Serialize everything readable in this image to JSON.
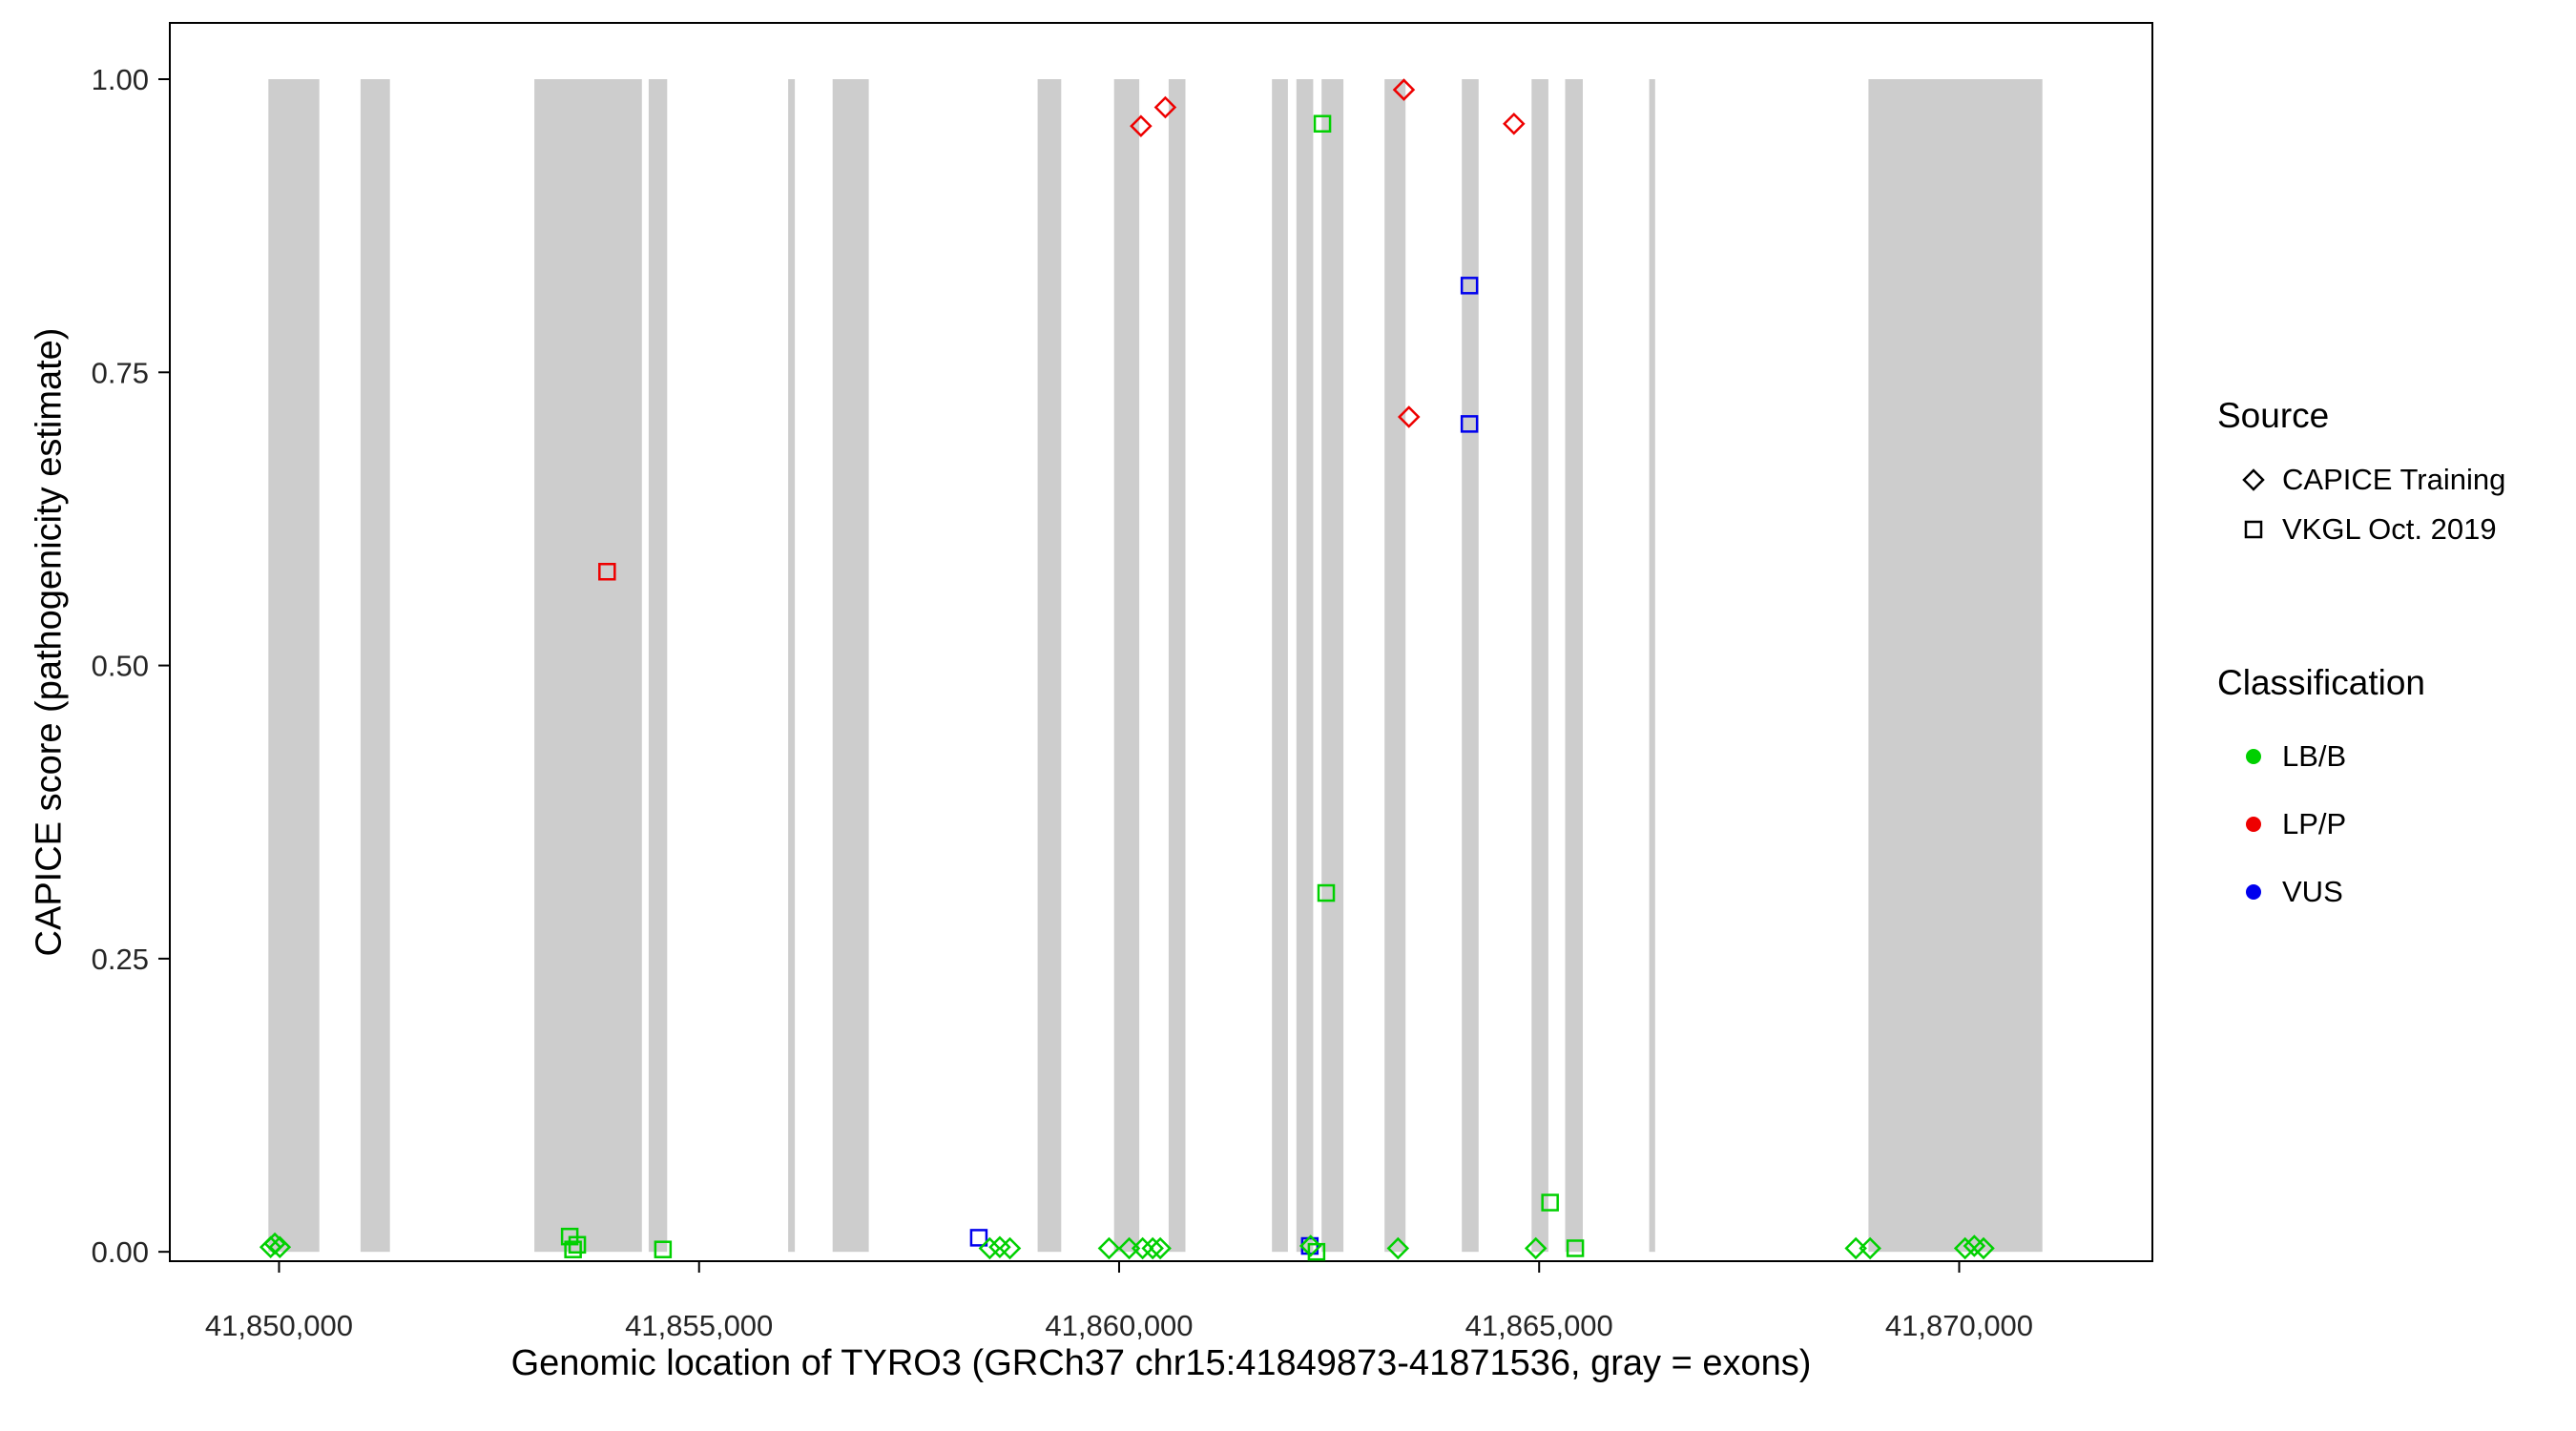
{
  "figure": {
    "background": "#FFFFFF"
  },
  "chart_data": {
    "type": "scatter",
    "title": "",
    "xlabel": "Genomic location of TYRO3 (GRCh37 chr15:41849873-41871536, gray = exons)",
    "ylabel": "CAPICE score (pathogenicity estimate)",
    "x_domain": [
      41848700,
      41872300
    ],
    "y_domain": [
      -0.008,
      1.048
    ],
    "grid": "off",
    "legend_position": "right",
    "x_ticks": [
      {
        "value": 41850000,
        "label": "41,850,000"
      },
      {
        "value": 41855000,
        "label": "41,855,000"
      },
      {
        "value": 41860000,
        "label": "41,860,000"
      },
      {
        "value": 41865000,
        "label": "41,865,000"
      },
      {
        "value": 41870000,
        "label": "41,870,000"
      }
    ],
    "y_ticks": [
      {
        "value": 0.0,
        "label": "0.00"
      },
      {
        "value": 0.25,
        "label": "0.25"
      },
      {
        "value": 0.5,
        "label": "0.50"
      },
      {
        "value": 0.75,
        "label": "0.75"
      },
      {
        "value": 1.0,
        "label": "1.00"
      }
    ],
    "exon_color": "#CDCDCD",
    "exons": [
      {
        "start": 41849873,
        "end": 41850480
      },
      {
        "start": 41850970,
        "end": 41851320
      },
      {
        "start": 41853040,
        "end": 41854320
      },
      {
        "start": 41854400,
        "end": 41854620
      },
      {
        "start": 41856060,
        "end": 41856140
      },
      {
        "start": 41856590,
        "end": 41857020
      },
      {
        "start": 41859030,
        "end": 41859310
      },
      {
        "start": 41859940,
        "end": 41860240
      },
      {
        "start": 41860590,
        "end": 41860790
      },
      {
        "start": 41861820,
        "end": 41862010
      },
      {
        "start": 41862110,
        "end": 41862310
      },
      {
        "start": 41862410,
        "end": 41862670
      },
      {
        "start": 41863160,
        "end": 41863410
      },
      {
        "start": 41864080,
        "end": 41864280
      },
      {
        "start": 41864910,
        "end": 41865110
      },
      {
        "start": 41865310,
        "end": 41865520
      },
      {
        "start": 41866310,
        "end": 41866380
      },
      {
        "start": 41868920,
        "end": 41870990
      }
    ],
    "sources": {
      "diamond": "CAPICE Training",
      "square": "VKGL Oct. 2019"
    },
    "classification_colors": {
      "LB/B": "#00D000",
      "LP/P": "#EE0000",
      "VUS": "#0000EE"
    },
    "points": [
      {
        "x": 41853905,
        "y": 0.58,
        "source": "VKGL Oct. 2019",
        "classification": "LP/P"
      },
      {
        "x": 41860260,
        "y": 0.96,
        "source": "CAPICE Training",
        "classification": "LP/P"
      },
      {
        "x": 41860550,
        "y": 0.976,
        "source": "CAPICE Training",
        "classification": "LP/P"
      },
      {
        "x": 41863390,
        "y": 0.991,
        "source": "CAPICE Training",
        "classification": "LP/P"
      },
      {
        "x": 41863450,
        "y": 0.712,
        "source": "CAPICE Training",
        "classification": "LP/P"
      },
      {
        "x": 41864700,
        "y": 0.962,
        "source": "CAPICE Training",
        "classification": "LP/P"
      },
      {
        "x": 41864170,
        "y": 0.824,
        "source": "VKGL Oct. 2019",
        "classification": "VUS"
      },
      {
        "x": 41864170,
        "y": 0.706,
        "source": "VKGL Oct. 2019",
        "classification": "VUS"
      },
      {
        "x": 41858330,
        "y": 0.012,
        "source": "VKGL Oct. 2019",
        "classification": "VUS"
      },
      {
        "x": 41862270,
        "y": 0.005,
        "source": "VKGL Oct. 2019",
        "classification": "VUS"
      },
      {
        "x": 41862420,
        "y": 0.962,
        "source": "VKGL Oct. 2019",
        "classification": "LB/B"
      },
      {
        "x": 41862465,
        "y": 0.306,
        "source": "VKGL Oct. 2019",
        "classification": "LB/B"
      },
      {
        "x": 41865130,
        "y": 0.042,
        "source": "VKGL Oct. 2019",
        "classification": "LB/B"
      },
      {
        "x": 41853460,
        "y": 0.013,
        "source": "VKGL Oct. 2019",
        "classification": "LB/B"
      },
      {
        "x": 41853500,
        "y": 0.002,
        "source": "VKGL Oct. 2019",
        "classification": "LB/B"
      },
      {
        "x": 41853550,
        "y": 0.006,
        "source": "VKGL Oct. 2019",
        "classification": "LB/B"
      },
      {
        "x": 41854570,
        "y": 0.002,
        "source": "VKGL Oct. 2019",
        "classification": "LB/B"
      },
      {
        "x": 41865430,
        "y": 0.003,
        "source": "VKGL Oct. 2019",
        "classification": "LB/B"
      },
      {
        "x": 41862350,
        "y": 0.0,
        "source": "VKGL Oct. 2019",
        "classification": "LB/B"
      },
      {
        "x": 41849900,
        "y": 0.004,
        "source": "CAPICE Training",
        "classification": "LB/B"
      },
      {
        "x": 41849950,
        "y": 0.007,
        "source": "CAPICE Training",
        "classification": "LB/B"
      },
      {
        "x": 41850010,
        "y": 0.004,
        "source": "CAPICE Training",
        "classification": "LB/B"
      },
      {
        "x": 41858460,
        "y": 0.003,
        "source": "CAPICE Training",
        "classification": "LB/B"
      },
      {
        "x": 41858580,
        "y": 0.004,
        "source": "CAPICE Training",
        "classification": "LB/B"
      },
      {
        "x": 41858700,
        "y": 0.003,
        "source": "CAPICE Training",
        "classification": "LB/B"
      },
      {
        "x": 41859880,
        "y": 0.003,
        "source": "CAPICE Training",
        "classification": "LB/B"
      },
      {
        "x": 41860120,
        "y": 0.003,
        "source": "CAPICE Training",
        "classification": "LB/B"
      },
      {
        "x": 41860280,
        "y": 0.003,
        "source": "CAPICE Training",
        "classification": "LB/B"
      },
      {
        "x": 41860400,
        "y": 0.003,
        "source": "CAPICE Training",
        "classification": "LB/B"
      },
      {
        "x": 41860490,
        "y": 0.003,
        "source": "CAPICE Training",
        "classification": "LB/B"
      },
      {
        "x": 41862280,
        "y": 0.005,
        "source": "CAPICE Training",
        "classification": "LB/B"
      },
      {
        "x": 41863320,
        "y": 0.003,
        "source": "CAPICE Training",
        "classification": "LB/B"
      },
      {
        "x": 41864960,
        "y": 0.003,
        "source": "CAPICE Training",
        "classification": "LB/B"
      },
      {
        "x": 41868770,
        "y": 0.003,
        "source": "CAPICE Training",
        "classification": "LB/B"
      },
      {
        "x": 41868940,
        "y": 0.003,
        "source": "CAPICE Training",
        "classification": "LB/B"
      },
      {
        "x": 41870070,
        "y": 0.003,
        "source": "CAPICE Training",
        "classification": "LB/B"
      },
      {
        "x": 41870180,
        "y": 0.005,
        "source": "CAPICE Training",
        "classification": "LB/B"
      },
      {
        "x": 41870290,
        "y": 0.003,
        "source": "CAPICE Training",
        "classification": "LB/B"
      }
    ]
  },
  "legend": {
    "source": {
      "title": "Source",
      "items": [
        {
          "shape": "diamond",
          "label": "CAPICE Training"
        },
        {
          "shape": "square",
          "label": "VKGL Oct. 2019"
        }
      ]
    },
    "classification": {
      "title": "Classification",
      "items": [
        {
          "color": "#00D000",
          "label": "LB/B"
        },
        {
          "color": "#EE0000",
          "label": "LP/P"
        },
        {
          "color": "#0000EE",
          "label": "VUS"
        }
      ]
    }
  }
}
